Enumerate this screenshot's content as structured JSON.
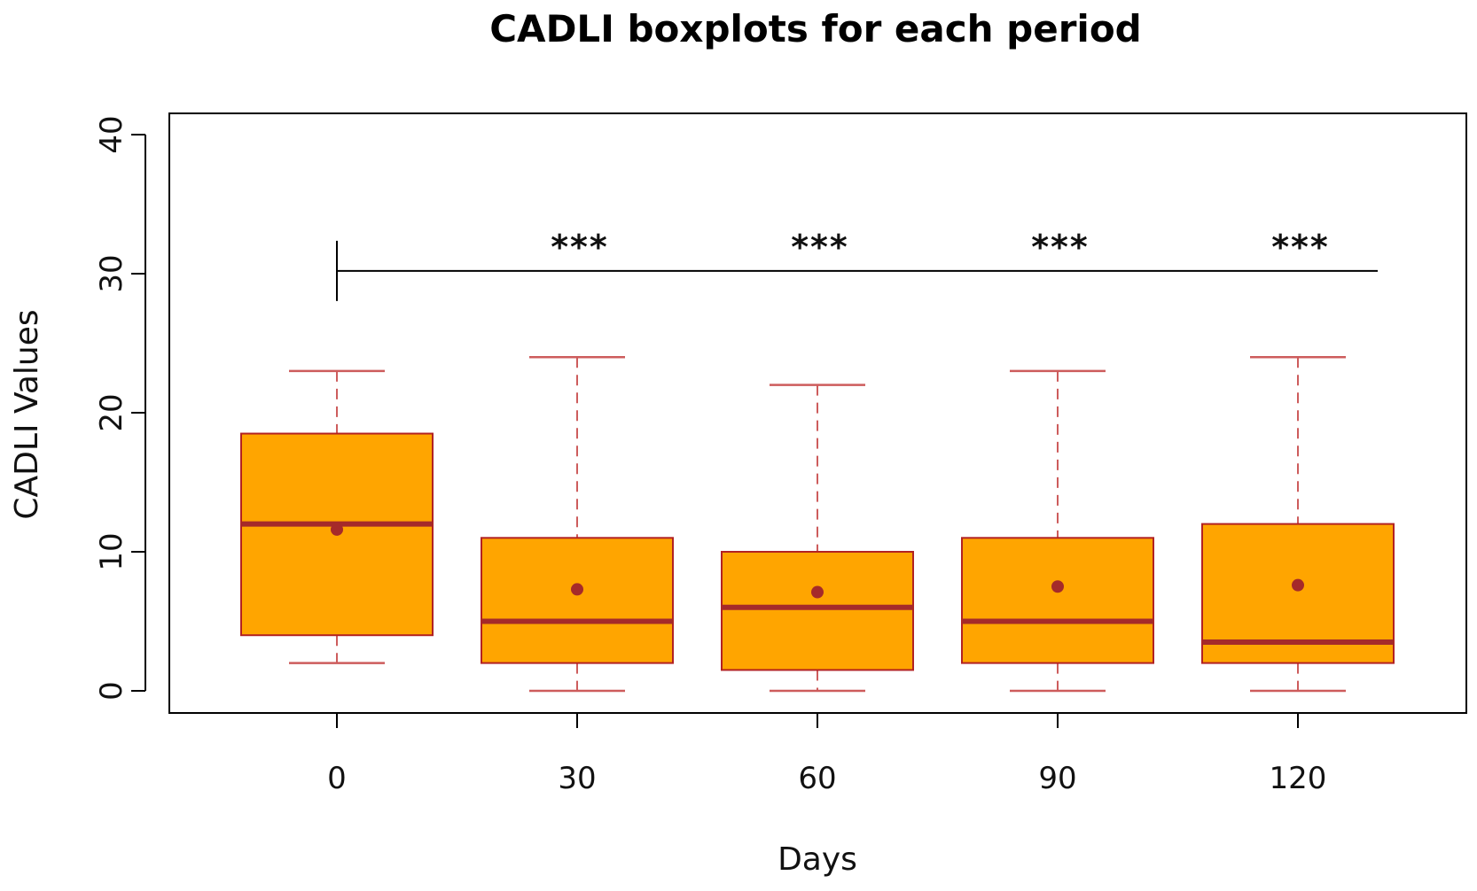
{
  "chart_data": {
    "type": "boxplot",
    "title": "CADLI boxplots for each period",
    "xlabel": "Days",
    "ylabel": "CADLI Values",
    "categories": [
      "0",
      "30",
      "60",
      "90",
      "120"
    ],
    "ylim": [
      0,
      40
    ],
    "yticks": [
      "0",
      "10",
      "20",
      "30",
      "40"
    ],
    "boxes": [
      {
        "category": "0",
        "min": 2,
        "q1": 4,
        "median": 12,
        "q3": 18.5,
        "max": 23,
        "mean": 11.6
      },
      {
        "category": "30",
        "min": 0,
        "q1": 2,
        "median": 5,
        "q3": 11,
        "max": 24,
        "mean": 7.3
      },
      {
        "category": "60",
        "min": 0,
        "q1": 1.5,
        "median": 6,
        "q3": 10,
        "max": 22,
        "mean": 7.1
      },
      {
        "category": "90",
        "min": 0,
        "q1": 2,
        "median": 5,
        "q3": 11,
        "max": 23,
        "mean": 7.5
      },
      {
        "category": "120",
        "min": 0,
        "q1": 2,
        "median": 3.5,
        "q3": 12,
        "max": 24,
        "mean": 7.6
      }
    ],
    "significance": {
      "bracket_y": 30.2,
      "reference": "0",
      "labels": [
        {
          "category": "30",
          "text": "***"
        },
        {
          "category": "60",
          "text": "***"
        },
        {
          "category": "90",
          "text": "***"
        },
        {
          "category": "120",
          "text": "***"
        }
      ]
    },
    "colors": {
      "box_fill": "#FFA500",
      "box_border": "#B22222",
      "median": "#A52A2A",
      "mean": "#A52A2A",
      "whisker": "#CD5C5C",
      "axis": "#000000"
    }
  }
}
